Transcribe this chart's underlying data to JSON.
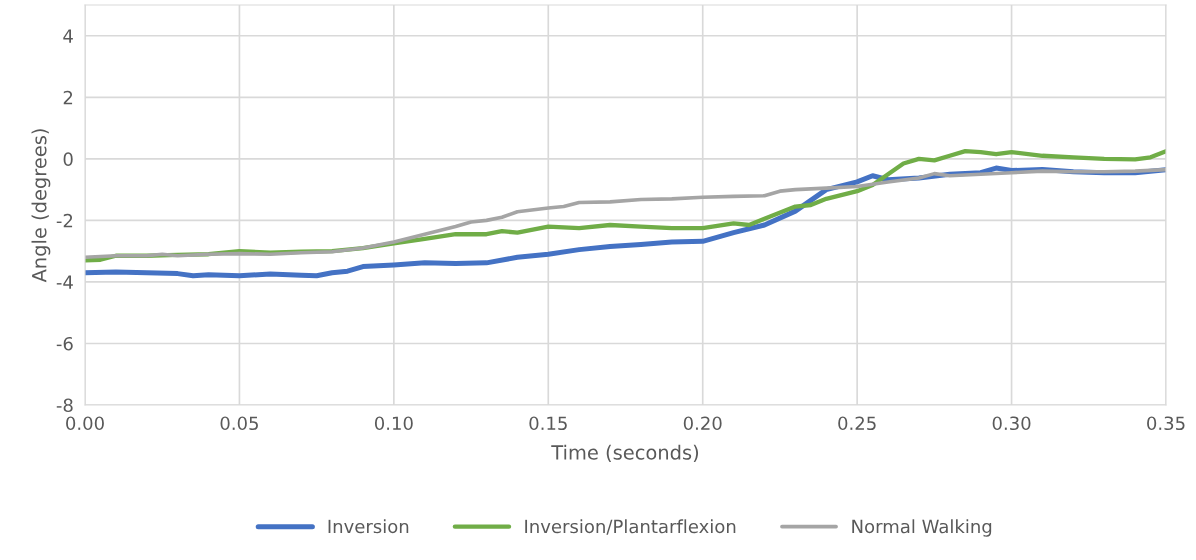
{
  "chart_data": {
    "type": "line",
    "xlabel": "Time (seconds)",
    "ylabel": "Angle (degrees)",
    "xlim": [
      0,
      0.35
    ],
    "ylim": [
      -8,
      5
    ],
    "xticks": [
      {
        "value": 0,
        "label": "0.00"
      },
      {
        "value": 0.05,
        "label": "0.05"
      },
      {
        "value": 0.1,
        "label": "0.10"
      },
      {
        "value": 0.15,
        "label": "0.15"
      },
      {
        "value": 0.2,
        "label": "0.20"
      },
      {
        "value": 0.25,
        "label": "0.25"
      },
      {
        "value": 0.3,
        "label": "0.30"
      },
      {
        "value": 0.35,
        "label": "0.35"
      }
    ],
    "yticks": [
      -8,
      -6,
      -4,
      -2,
      0,
      2,
      4
    ],
    "grid": true,
    "legend": "bottom",
    "marker": "none",
    "line_style": "solid",
    "series": [
      {
        "name": "Inversion",
        "color": "#4472c4",
        "x": [
          0,
          0.01,
          0.02,
          0.03,
          0.035,
          0.04,
          0.05,
          0.06,
          0.07,
          0.075,
          0.08,
          0.085,
          0.09,
          0.1,
          0.11,
          0.12,
          0.13,
          0.14,
          0.15,
          0.16,
          0.17,
          0.18,
          0.19,
          0.2,
          0.21,
          0.22,
          0.23,
          0.24,
          0.25,
          0.255,
          0.26,
          0.27,
          0.28,
          0.29,
          0.295,
          0.3,
          0.31,
          0.32,
          0.33,
          0.34,
          0.35
        ],
        "values": [
          -3.7,
          -3.68,
          -3.7,
          -3.73,
          -3.8,
          -3.77,
          -3.8,
          -3.74,
          -3.78,
          -3.8,
          -3.7,
          -3.65,
          -3.5,
          -3.45,
          -3.38,
          -3.4,
          -3.38,
          -3.2,
          -3.1,
          -2.95,
          -2.85,
          -2.78,
          -2.7,
          -2.68,
          -2.4,
          -2.15,
          -1.7,
          -1.0,
          -0.75,
          -0.55,
          -0.68,
          -0.62,
          -0.5,
          -0.45,
          -0.3,
          -0.38,
          -0.35,
          -0.42,
          -0.45,
          -0.45,
          -0.35
        ]
      },
      {
        "name": "Inversion/Plantarflexion",
        "color": "#70ad47",
        "x": [
          0,
          0.005,
          0.01,
          0.02,
          0.03,
          0.04,
          0.05,
          0.06,
          0.07,
          0.08,
          0.09,
          0.1,
          0.11,
          0.12,
          0.13,
          0.135,
          0.14,
          0.15,
          0.16,
          0.17,
          0.18,
          0.19,
          0.2,
          0.21,
          0.215,
          0.22,
          0.23,
          0.235,
          0.24,
          0.25,
          0.255,
          0.26,
          0.265,
          0.27,
          0.275,
          0.28,
          0.285,
          0.29,
          0.295,
          0.3,
          0.31,
          0.32,
          0.33,
          0.34,
          0.345,
          0.35
        ],
        "values": [
          -3.3,
          -3.28,
          -3.15,
          -3.15,
          -3.12,
          -3.1,
          -3.0,
          -3.05,
          -3.02,
          -3.0,
          -2.9,
          -2.75,
          -2.6,
          -2.45,
          -2.45,
          -2.35,
          -2.4,
          -2.2,
          -2.25,
          -2.15,
          -2.2,
          -2.25,
          -2.25,
          -2.1,
          -2.15,
          -1.95,
          -1.55,
          -1.5,
          -1.3,
          -1.05,
          -0.85,
          -0.5,
          -0.15,
          0.0,
          -0.05,
          0.1,
          0.25,
          0.22,
          0.15,
          0.22,
          0.1,
          0.05,
          0.0,
          -0.02,
          0.05,
          0.25
        ]
      },
      {
        "name": "Normal Walking",
        "color": "#a5a5a5",
        "x": [
          0,
          0.01,
          0.02,
          0.025,
          0.03,
          0.04,
          0.05,
          0.06,
          0.07,
          0.08,
          0.09,
          0.1,
          0.11,
          0.12,
          0.125,
          0.13,
          0.135,
          0.14,
          0.15,
          0.155,
          0.16,
          0.17,
          0.18,
          0.19,
          0.2,
          0.21,
          0.22,
          0.225,
          0.23,
          0.24,
          0.25,
          0.26,
          0.27,
          0.275,
          0.28,
          0.29,
          0.3,
          0.31,
          0.32,
          0.33,
          0.34,
          0.35
        ],
        "values": [
          -3.2,
          -3.15,
          -3.15,
          -3.1,
          -3.15,
          -3.1,
          -3.08,
          -3.1,
          -3.05,
          -3.02,
          -2.9,
          -2.7,
          -2.45,
          -2.2,
          -2.05,
          -2.0,
          -1.9,
          -1.72,
          -1.6,
          -1.55,
          -1.42,
          -1.4,
          -1.32,
          -1.3,
          -1.25,
          -1.22,
          -1.2,
          -1.05,
          -1.0,
          -0.95,
          -0.9,
          -0.75,
          -0.62,
          -0.48,
          -0.55,
          -0.5,
          -0.45,
          -0.4,
          -0.42,
          -0.42,
          -0.4,
          -0.35
        ]
      }
    ]
  }
}
